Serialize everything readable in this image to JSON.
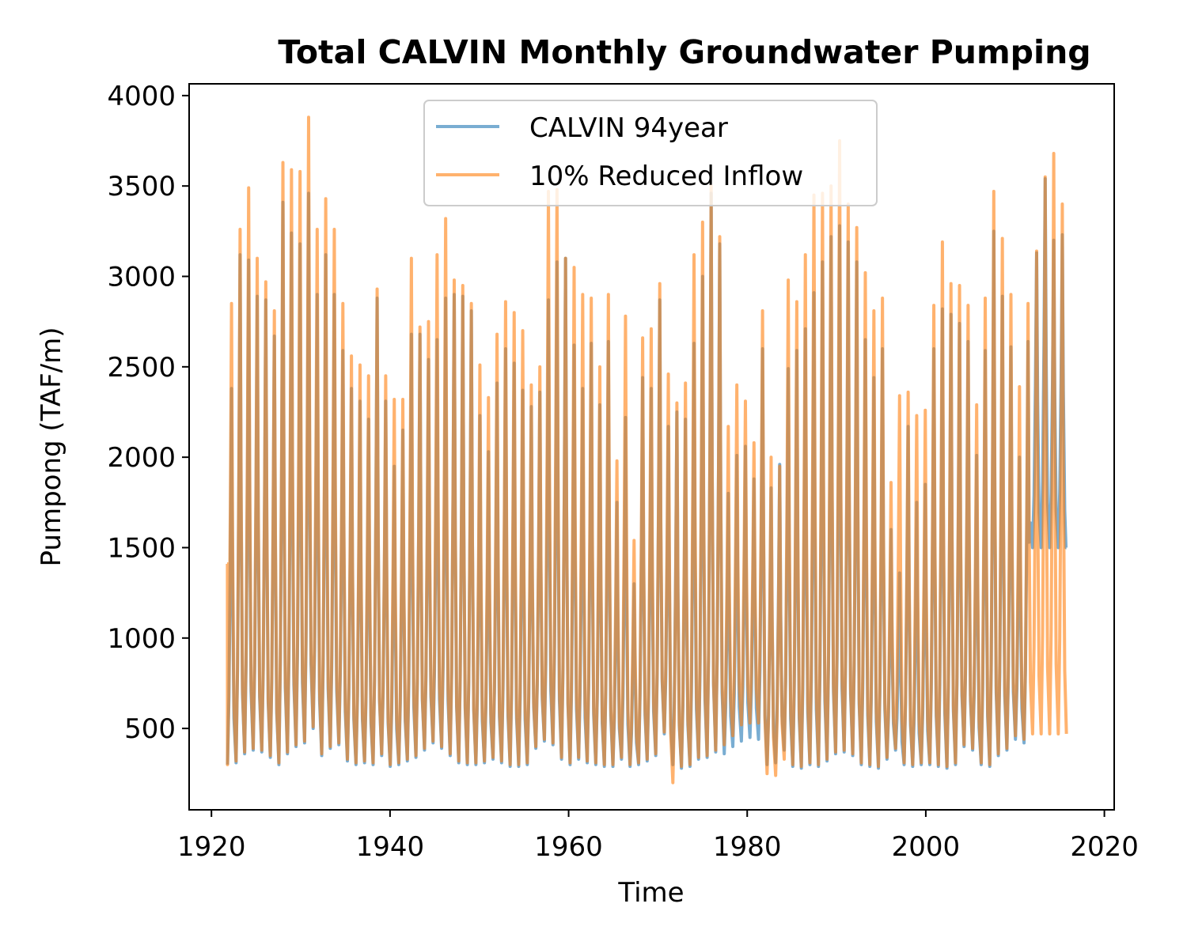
{
  "chart_data": {
    "type": "line",
    "title": "Total CALVIN Monthly Groundwater Pumping",
    "xlabel": "Time",
    "ylabel": "Pumpong (TAF/m)",
    "xlim": [
      1917.5,
      2021.1
    ],
    "ylim": [
      50,
      4065
    ],
    "x_ticks": [
      1920,
      1940,
      1960,
      1980,
      2000,
      2020
    ],
    "y_ticks": [
      500,
      1000,
      1500,
      2000,
      2500,
      3000,
      3500,
      4000
    ],
    "grid": false,
    "legend_position": "upper center",
    "series": [
      {
        "name": "CALVIN 94year",
        "color": "#1f77b4",
        "opacity": 0.6,
        "x_start": 1921.75,
        "x_end": 2015.75,
        "peaks": [
          2380,
          3120,
          3090,
          2890,
          2870,
          2670,
          3410,
          3240,
          3180,
          3460,
          2900,
          3120,
          2900,
          2590,
          2380,
          2310,
          2210,
          2880,
          2310,
          1950,
          2150,
          2680,
          2680,
          2540,
          2650,
          2880,
          2900,
          2890,
          2810,
          2230,
          2030,
          2410,
          2600,
          2520,
          2370,
          2280,
          2360,
          2870,
          3080,
          3100,
          2620,
          2380,
          2630,
          2290,
          2640,
          1750,
          2220,
          1300,
          2440,
          2380,
          2870,
          2170,
          2250,
          2210,
          2630,
          3000,
          3460,
          3180,
          1800,
          2010,
          2060,
          1880,
          2600,
          1830,
          1960,
          2490,
          2590,
          2710,
          2910,
          3080,
          3220,
          3280,
          3190,
          3080,
          2650,
          2440,
          2600,
          1600,
          1360,
          2170,
          1750,
          1850,
          2600,
          2820,
          2790,
          2740,
          2640,
          2010,
          2590,
          3250,
          2890,
          2610,
          2000,
          2640,
          3130,
          3540,
          3200,
          3230
        ],
        "troughs": [
          300,
          310,
          360,
          380,
          370,
          340,
          300,
          360,
          400,
          420,
          500,
          350,
          390,
          410,
          320,
          300,
          310,
          300,
          350,
          290,
          300,
          320,
          340,
          380,
          420,
          390,
          350,
          310,
          300,
          300,
          310,
          330,
          310,
          290,
          290,
          300,
          390,
          430,
          410,
          330,
          300,
          330,
          310,
          300,
          290,
          290,
          330,
          290,
          300,
          320,
          350,
          470,
          300,
          280,
          290,
          330,
          340,
          370,
          360,
          400,
          430,
          450,
          440,
          300,
          310,
          380,
          290,
          280,
          300,
          290,
          320,
          360,
          370,
          350,
          300,
          290,
          280,
          330,
          380,
          300,
          290,
          300,
          300,
          290,
          280,
          300,
          400,
          380,
          300,
          290,
          350,
          380,
          440,
          420,
          1500
        ],
        "final_value": 1500
      },
      {
        "name": "10% Reduced Inflow",
        "color": "#ff7f0e",
        "opacity": 0.6,
        "x_start": 1921.75,
        "x_end": 2015.75,
        "start_value": 1410,
        "peaks": [
          2850,
          3260,
          3490,
          3100,
          2970,
          2810,
          3630,
          3590,
          3580,
          3880,
          3260,
          3430,
          3260,
          2850,
          2560,
          2510,
          2450,
          2930,
          2450,
          2320,
          2320,
          3100,
          2720,
          2750,
          3120,
          3320,
          2980,
          2950,
          2850,
          2510,
          2330,
          2680,
          2860,
          2800,
          2700,
          2400,
          2500,
          3470,
          3480,
          3100,
          3050,
          2900,
          2880,
          2500,
          2900,
          1980,
          2780,
          1540,
          2660,
          2710,
          2960,
          2460,
          2300,
          2410,
          3120,
          3300,
          3500,
          3220,
          2170,
          2400,
          2310,
          2080,
          2810,
          2000,
          1950,
          2980,
          2860,
          3120,
          3450,
          3460,
          3500,
          3750,
          3400,
          3270,
          3020,
          2810,
          2880,
          1860,
          2340,
          2360,
          2230,
          2260,
          2840,
          3190,
          2960,
          2950,
          2840,
          2290,
          2880,
          3470,
          3210,
          2900,
          2390,
          2850,
          3140,
          3550,
          3680,
          3400
        ],
        "troughs": [
          300,
          320,
          370,
          390,
          380,
          350,
          310,
          370,
          410,
          430,
          510,
          360,
          400,
          420,
          330,
          310,
          320,
          310,
          360,
          300,
          310,
          330,
          350,
          390,
          430,
          400,
          360,
          320,
          310,
          310,
          320,
          340,
          320,
          300,
          300,
          310,
          400,
          440,
          420,
          340,
          310,
          340,
          320,
          310,
          300,
          300,
          340,
          300,
          310,
          330,
          360,
          480,
          200,
          290,
          300,
          340,
          350,
          380,
          410,
          460,
          520,
          530,
          530,
          250,
          240,
          330,
          300,
          290,
          310,
          300,
          330,
          370,
          380,
          360,
          310,
          300,
          290,
          340,
          390,
          310,
          300,
          310,
          310,
          300,
          290,
          310,
          410,
          390,
          310,
          300,
          360,
          390,
          460,
          440,
          470
        ]
      }
    ]
  }
}
